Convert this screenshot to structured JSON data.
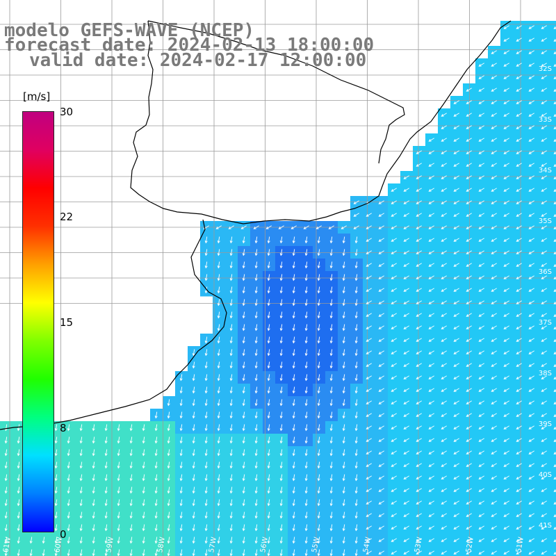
{
  "title": {
    "line1": "modelo GEFS-WAVE (NCEP)",
    "line2": "forecast date: 2024-02-13 18:00:00",
    "line3": "valid date: 2024-02-17 12:00:00"
  },
  "colorbar": {
    "unit": "[m/s]",
    "min": 0,
    "max": 30,
    "ticks": [
      "0",
      "8",
      "15",
      "22",
      "30"
    ],
    "colors": [
      "#0000ff",
      "#0080ff",
      "#00e0ff",
      "#00ff80",
      "#20ff00",
      "#80ff00",
      "#ffff00",
      "#ffa000",
      "#ff3000",
      "#ff0000",
      "#e00060",
      "#c00080"
    ]
  },
  "lat_labels": [
    "32S",
    "33S",
    "34S",
    "35S",
    "36S",
    "37S",
    "38S",
    "39S",
    "40S",
    "41S"
  ],
  "lon_labels": [
    "61W",
    "60W",
    "59W",
    "58W",
    "57W",
    "56W",
    "55W",
    "54W",
    "53W",
    "52W",
    "51W"
  ],
  "field": {
    "variable": "wind speed and direction",
    "typical_speed_ms": [
      4,
      9
    ],
    "prevailing_direction": "north-east winds blowing toward south-west"
  },
  "colors": {
    "ocean_base": "#2ab8f5",
    "grid": "#9a9a9a",
    "coast": "#000000",
    "land": "#ffffff",
    "arrow": "#ffffff",
    "title": "#7a7a7a"
  }
}
